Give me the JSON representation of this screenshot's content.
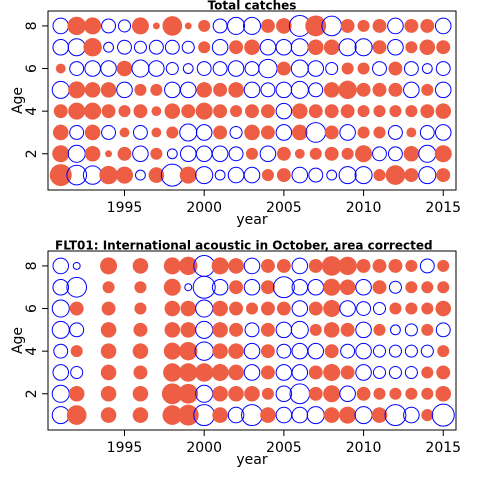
{
  "chart_data": [
    {
      "type": "scatter",
      "subtype": "residual-bubble",
      "title": "Total catches",
      "xlabel": "year",
      "ylabel": "Age",
      "xlim": [
        1990.2,
        2015.8
      ],
      "ylim": [
        0.3,
        8.7
      ],
      "xticks": [
        1995,
        2000,
        2005,
        2010,
        2015
      ],
      "yticks": [
        2,
        4,
        6,
        8
      ],
      "grid": false,
      "legend": "none",
      "colors": {
        "positive": "#EE5E44",
        "negative": "#0000FF"
      },
      "years": [
        1991,
        1992,
        1993,
        1994,
        1995,
        1996,
        1997,
        1998,
        1999,
        2000,
        2001,
        2002,
        2003,
        2004,
        2005,
        2006,
        2007,
        2008,
        2009,
        2010,
        2011,
        2012,
        2013,
        2014,
        2015
      ],
      "ages": [
        1,
        2,
        3,
        4,
        5,
        6,
        7,
        8
      ],
      "residuals": [
        [
          1.0,
          -0.8,
          -0.7,
          0.7,
          0.6,
          -0.2,
          0.5,
          -1.0,
          0.6,
          -0.6,
          -0.2,
          -0.5,
          -0.5,
          0.3,
          0.4,
          -0.5,
          -0.4,
          -0.2,
          -0.6,
          -0.6,
          0.3,
          0.8,
          0.4,
          -0.6,
          0.4
        ],
        [
          0.6,
          -0.6,
          0.5,
          0.1,
          0.4,
          -0.5,
          0.3,
          -0.2,
          -0.5,
          -0.5,
          -0.5,
          -0.4,
          0.3,
          -0.5,
          0.4,
          0.2,
          0.3,
          0.4,
          0.3,
          0.6,
          -0.4,
          -0.4,
          0.5,
          -0.6,
          0.6
        ],
        [
          0.5,
          -0.4,
          0.5,
          -0.4,
          0.2,
          -0.4,
          0.2,
          0.3,
          -0.6,
          -0.5,
          0.4,
          -0.3,
          0.5,
          0.4,
          -0.5,
          0.5,
          -0.8,
          0.4,
          -0.5,
          0.3,
          0.3,
          -0.4,
          0.2,
          -0.4,
          -0.5
        ],
        [
          0.4,
          0.6,
          0.6,
          0.4,
          0.3,
          0.4,
          0.2,
          0.5,
          0.4,
          0.6,
          0.4,
          0.3,
          0.4,
          0.4,
          -0.5,
          0.5,
          0.4,
          0.4,
          0.4,
          0.3,
          0.3,
          0.3,
          0.3,
          0.4,
          0.5
        ],
        [
          -0.6,
          0.6,
          0.5,
          0.5,
          -0.5,
          0.3,
          0.3,
          -0.5,
          -0.5,
          0.5,
          0.4,
          0.5,
          -0.5,
          -0.4,
          -0.5,
          -0.6,
          -0.4,
          0.5,
          0.7,
          0.4,
          0.4,
          0.4,
          -0.5,
          0.3,
          -0.5
        ],
        [
          0.2,
          -0.4,
          -0.5,
          -0.5,
          0.5,
          -0.6,
          -0.5,
          -0.3,
          -0.2,
          -0.4,
          -0.4,
          -0.5,
          -0.4,
          -0.7,
          0.4,
          -0.6,
          -0.5,
          -0.3,
          0.3,
          0.3,
          -0.4,
          0.4,
          -0.4,
          -0.2,
          -0.4
        ],
        [
          -0.5,
          -0.6,
          0.7,
          -0.2,
          -0.4,
          -0.3,
          -0.4,
          -0.4,
          -0.3,
          0.3,
          -0.5,
          0.4,
          0.5,
          -0.5,
          -0.5,
          -0.6,
          0.5,
          0.5,
          -0.6,
          -0.6,
          0.4,
          -0.5,
          0.3,
          0.5,
          0.4
        ],
        [
          -0.5,
          0.7,
          0.6,
          -0.4,
          -0.3,
          0.6,
          0.1,
          0.8,
          0.1,
          0.3,
          -0.4,
          -0.6,
          -0.6,
          0.4,
          0.5,
          -0.9,
          0.9,
          -0.8,
          0.4,
          0.3,
          0.4,
          -0.5,
          0.4,
          0.4,
          -0.5
        ]
      ]
    },
    {
      "type": "scatter",
      "subtype": "residual-bubble",
      "title": "FLT01:      International acoustic in October, area corrected",
      "xlabel": "year",
      "ylabel": "Age",
      "xlim": [
        1990.2,
        2015.8
      ],
      "ylim": [
        0.3,
        8.7
      ],
      "xticks": [
        1995,
        2000,
        2005,
        2010,
        2015
      ],
      "yticks": [
        2,
        4,
        6,
        8
      ],
      "grid": false,
      "legend": "none",
      "colors": {
        "positive": "#EE5E44",
        "negative": "#0000FF"
      },
      "years": [
        1991,
        1992,
        1994,
        1996,
        1998,
        1999,
        2000,
        2001,
        2002,
        2003,
        2004,
        2005,
        2006,
        2007,
        2008,
        2009,
        2010,
        2011,
        2012,
        2013,
        2014,
        2015
      ],
      "ages": [
        1,
        2,
        3,
        4,
        5,
        6,
        7,
        8
      ],
      "residuals": [
        [
          -0.6,
          0.8,
          0.5,
          0.5,
          0.8,
          0.9,
          -0.9,
          0.5,
          -0.5,
          -0.9,
          0.5,
          -0.5,
          -0.5,
          -0.6,
          0.5,
          0.6,
          -0.6,
          0.5,
          -0.9,
          -0.5,
          0.3,
          -1.0
        ],
        [
          -0.6,
          0.5,
          0.5,
          0.5,
          0.9,
          0.8,
          -0.6,
          0.5,
          0.5,
          0.5,
          0.3,
          -0.5,
          -0.8,
          0.4,
          0.6,
          -0.5,
          0.4,
          0.3,
          0.3,
          0.3,
          0.3,
          0.5
        ],
        [
          -0.5,
          -0.3,
          0.5,
          0.4,
          0.7,
          0.7,
          0.7,
          0.6,
          0.5,
          -0.5,
          0.4,
          -0.5,
          -0.5,
          0.4,
          0.6,
          0.4,
          -0.5,
          -0.3,
          -0.3,
          -0.3,
          0.3,
          0.4
        ],
        [
          -0.4,
          0.3,
          0.5,
          0.5,
          0.6,
          0.7,
          -0.7,
          0.5,
          0.5,
          -0.5,
          0.4,
          -0.4,
          -0.5,
          -0.5,
          0.4,
          -0.4,
          -0.5,
          -0.3,
          -0.3,
          -0.3,
          -0.3,
          0.3
        ],
        [
          -0.6,
          -0.4,
          0.5,
          0.4,
          0.5,
          0.5,
          -0.6,
          0.5,
          0.4,
          -0.4,
          0.4,
          -0.5,
          -0.6,
          0.3,
          0.5,
          0.4,
          -0.5,
          0.3,
          -0.2,
          -0.3,
          0.3,
          -0.4
        ],
        [
          -0.6,
          0.4,
          0.4,
          0.3,
          0.5,
          0.5,
          -0.6,
          0.5,
          0.4,
          0.3,
          0.4,
          0.4,
          -0.5,
          0.4,
          0.6,
          -0.5,
          -0.4,
          -0.3,
          0.3,
          0.3,
          0.3,
          0.5
        ],
        [
          -0.5,
          -0.8,
          0.3,
          0.3,
          0.6,
          -0.1,
          -1.0,
          -0.5,
          0.4,
          -0.5,
          0.4,
          -0.9,
          -0.5,
          -0.5,
          0.6,
          0.5,
          -0.5,
          0.4,
          -0.3,
          0.3,
          0.3,
          0.3
        ],
        [
          -0.5,
          -0.1,
          0.6,
          0.5,
          0.6,
          0.7,
          -0.9,
          0.6,
          0.5,
          -0.5,
          0.4,
          0.4,
          -0.5,
          0.4,
          0.8,
          0.7,
          0.4,
          0.4,
          0.4,
          0.3,
          -0.4,
          0.3
        ]
      ]
    }
  ]
}
